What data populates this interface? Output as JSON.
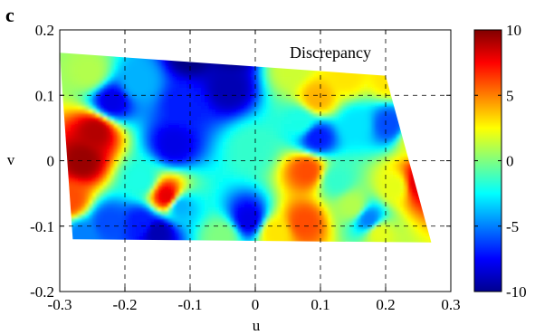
{
  "panel_label": "c",
  "chart_data": {
    "type": "heatmap",
    "annotation": "Discrepancy",
    "xlabel": "u",
    "ylabel": "v",
    "xlim": [
      -0.3,
      0.3
    ],
    "ylim": [
      -0.2,
      0.2
    ],
    "x_ticks": [
      -0.3,
      -0.2,
      -0.1,
      0,
      0.1,
      0.2,
      0.3
    ],
    "x_tick_labels": [
      "-0.3",
      "-0.2",
      "-0.1",
      "0",
      "0.1",
      "0.2",
      "0.3"
    ],
    "y_ticks": [
      -0.2,
      -0.1,
      0,
      0.1,
      0.2
    ],
    "y_tick_labels": [
      "-0.2",
      "-0.1",
      "0",
      "0.1",
      "0.2"
    ],
    "grid": true,
    "colorbar": {
      "colormap": "jet",
      "range": [
        -10,
        10
      ],
      "ticks": [
        10,
        5,
        0,
        -5,
        -10
      ],
      "tick_labels": [
        "10",
        "5",
        "0",
        "-5",
        "-10"
      ]
    },
    "field_region": {
      "corners": [
        [
          -0.3,
          0.165
        ],
        [
          0.2,
          0.13
        ],
        [
          0.27,
          -0.125
        ],
        [
          -0.28,
          -0.12
        ]
      ]
    },
    "features": [
      {
        "u": -0.005,
        "v": 0.02,
        "value": -1.5
      },
      {
        "u": -0.265,
        "v": 0.0,
        "value": 9.5
      },
      {
        "u": -0.245,
        "v": 0.045,
        "value": 9
      },
      {
        "u": -0.285,
        "v": -0.06,
        "value": 6
      },
      {
        "u": -0.255,
        "v": 0.135,
        "value": 1
      },
      {
        "u": -0.22,
        "v": 0.09,
        "value": -8
      },
      {
        "u": -0.175,
        "v": -0.03,
        "value": -2
      },
      {
        "u": -0.18,
        "v": 0.12,
        "value": -4
      },
      {
        "u": -0.1,
        "v": 0.165,
        "value": -10
      },
      {
        "u": -0.035,
        "v": 0.17,
        "value": -10
      },
      {
        "u": -0.04,
        "v": 0.11,
        "value": -9
      },
      {
        "u": -0.11,
        "v": 0.085,
        "value": -7
      },
      {
        "u": -0.125,
        "v": 0.025,
        "value": -8
      },
      {
        "u": -0.115,
        "v": -0.07,
        "value": -4
      },
      {
        "u": -0.135,
        "v": -0.055,
        "value": 8
      },
      {
        "u": -0.175,
        "v": -0.095,
        "value": -7
      },
      {
        "u": -0.15,
        "v": -0.11,
        "value": -9
      },
      {
        "u": -0.225,
        "v": -0.095,
        "value": -6
      },
      {
        "u": -0.265,
        "v": -0.115,
        "value": -5
      },
      {
        "u": -0.01,
        "v": -0.09,
        "value": -8
      },
      {
        "u": 0.07,
        "v": 0.06,
        "value": -2
      },
      {
        "u": 0.055,
        "v": 0.14,
        "value": 1.5
      },
      {
        "u": 0.14,
        "v": 0.13,
        "value": 3
      },
      {
        "u": 0.095,
        "v": 0.095,
        "value": 4
      },
      {
        "u": 0.095,
        "v": 0.035,
        "value": -7
      },
      {
        "u": 0.155,
        "v": 0.055,
        "value": -3
      },
      {
        "u": 0.205,
        "v": 0.055,
        "value": -6
      },
      {
        "u": 0.08,
        "v": -0.015,
        "value": 6
      },
      {
        "u": 0.075,
        "v": -0.095,
        "value": 6
      },
      {
        "u": 0.125,
        "v": -0.03,
        "value": -1.5
      },
      {
        "u": 0.15,
        "v": -0.07,
        "value": 1
      },
      {
        "u": 0.175,
        "v": -0.09,
        "value": -5
      },
      {
        "u": 0.215,
        "v": -0.04,
        "value": 2
      },
      {
        "u": 0.25,
        "v": -0.035,
        "value": 8
      },
      {
        "u": 0.265,
        "v": -0.025,
        "value": 9.5
      },
      {
        "u": 0.245,
        "v": 0.03,
        "value": 2
      },
      {
        "u": 0.205,
        "v": 0.125,
        "value": 3
      },
      {
        "u": 0.19,
        "v": -0.11,
        "value": 2
      },
      {
        "u": 0.03,
        "v": -0.11,
        "value": 3
      },
      {
        "u": -0.05,
        "v": -0.115,
        "value": 0
      }
    ],
    "default_value": 0
  }
}
